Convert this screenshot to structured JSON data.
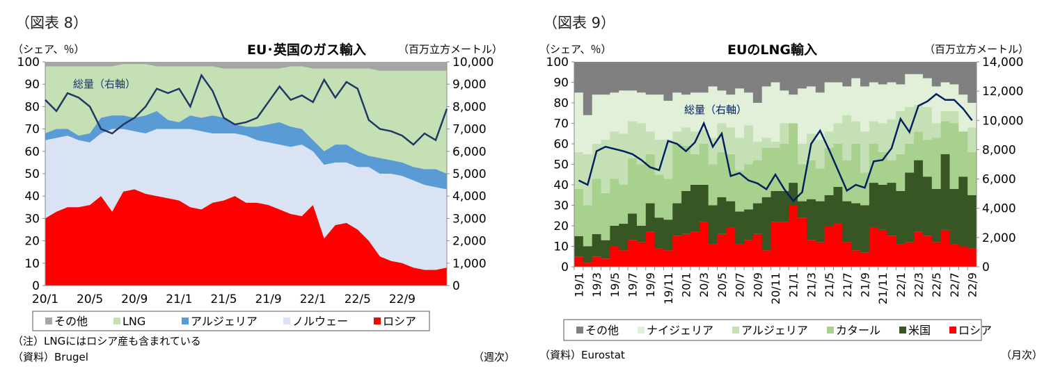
{
  "chart_data": [
    {
      "figure_label": "（図表 8）",
      "type": "area",
      "stacked": true,
      "title": "EU･英国のガス輸入",
      "ylabel_left": "（シェア、％）",
      "ylabel_right": "（百万立方メートル）",
      "ylim_left": [
        0,
        100
      ],
      "ylim_right": [
        0,
        10000
      ],
      "yticks_left": [
        "0",
        "10",
        "20",
        "30",
        "40",
        "50",
        "60",
        "70",
        "80",
        "90",
        "100"
      ],
      "yticks_right": [
        "0",
        "1,000",
        "2,000",
        "3,000",
        "4,000",
        "5,000",
        "6,000",
        "7,000",
        "8,000",
        "9,000",
        "10,000"
      ],
      "xtick_labels": [
        "20/1",
        "20/5",
        "20/9",
        "21/1",
        "21/5",
        "21/9",
        "22/1",
        "22/5",
        "22/9"
      ],
      "x": [
        "20/1",
        "20/2",
        "20/3",
        "20/4",
        "20/5",
        "20/6",
        "20/7",
        "20/8",
        "20/9",
        "20/10",
        "20/11",
        "20/12",
        "21/1",
        "21/2",
        "21/3",
        "21/4",
        "21/5",
        "21/6",
        "21/7",
        "21/8",
        "21/9",
        "21/10",
        "21/11",
        "21/12",
        "22/1",
        "22/2",
        "22/3",
        "22/4",
        "22/5",
        "22/6",
        "22/7",
        "22/8",
        "22/9",
        "22/10",
        "22/11",
        "22/12",
        "23/1"
      ],
      "stack_values_are_cumulative_upper_edges": true,
      "series": [
        {
          "name": "ロシア",
          "color": "#ff0000",
          "values": [
            30,
            33,
            35,
            35,
            36,
            40,
            33,
            42,
            43,
            41,
            40,
            39,
            38,
            35,
            34,
            37,
            38,
            40,
            37,
            37,
            36,
            34,
            32,
            31,
            36,
            21,
            27,
            28,
            25,
            20,
            13,
            11,
            10,
            8,
            7,
            7,
            8
          ]
        },
        {
          "name": "ノルウェー",
          "color": "#dae3f3",
          "values": [
            65,
            66,
            67,
            65,
            64,
            68,
            70,
            70,
            69,
            68,
            70,
            70,
            70,
            70,
            69,
            68,
            68,
            68,
            67,
            65,
            64,
            63,
            62,
            63,
            60,
            54,
            55,
            55,
            53,
            53,
            50,
            50,
            49,
            47,
            45,
            44,
            43
          ]
        },
        {
          "name": "アルジェリア",
          "color": "#5b9bd5",
          "values": [
            68,
            70,
            70,
            67,
            68,
            75,
            76,
            76,
            75,
            76,
            78,
            74,
            73,
            76,
            75,
            76,
            75,
            72,
            71,
            71,
            72,
            73,
            71,
            70,
            65,
            60,
            63,
            63,
            60,
            58,
            57,
            56,
            55,
            53,
            52,
            52,
            50
          ]
        },
        {
          "name": "LNG",
          "color": "#c5e0b4",
          "values": [
            98,
            98,
            98,
            98,
            98,
            98,
            98,
            99,
            99,
            99,
            98,
            98,
            98,
            98,
            98,
            98,
            97,
            97,
            97,
            97,
            97,
            97,
            98,
            98,
            97,
            97,
            97,
            97,
            97,
            97,
            96,
            96,
            96,
            96,
            96,
            96,
            96
          ]
        },
        {
          "name": "その他",
          "color": "#a6a6a6",
          "values": [
            100,
            100,
            100,
            100,
            100,
            100,
            100,
            100,
            100,
            100,
            100,
            100,
            100,
            100,
            100,
            100,
            100,
            100,
            100,
            100,
            100,
            100,
            100,
            100,
            100,
            100,
            100,
            100,
            100,
            100,
            100,
            100,
            100,
            100,
            100,
            100,
            100
          ]
        }
      ],
      "line": {
        "name": "総量（右軸）",
        "color": "#1f3864",
        "values": [
          8300,
          7800,
          8600,
          8400,
          8000,
          7000,
          6800,
          7200,
          7500,
          8000,
          8800,
          8600,
          8800,
          8000,
          9400,
          8700,
          7500,
          7200,
          7300,
          7500,
          8200,
          8900,
          8300,
          8500,
          8200,
          9200,
          8400,
          9100,
          8800,
          7400,
          7000,
          6900,
          6700,
          6300,
          6800,
          6500,
          7900
        ]
      },
      "note": "（注）LNGにはロシア産も含まれている",
      "source": "（資料）Brugel",
      "frequency": "（週次）"
    },
    {
      "figure_label": "（図表 9）",
      "type": "bar",
      "stacked": true,
      "title": "EUのLNG輸入",
      "ylabel_left": "（シェア、％）",
      "ylabel_right": "（百万立方メートル）",
      "ylim_left": [
        0,
        100
      ],
      "ylim_right": [
        0,
        14000
      ],
      "yticks_left": [
        "0",
        "10",
        "20",
        "30",
        "40",
        "50",
        "60",
        "70",
        "80",
        "90",
        "100"
      ],
      "yticks_right": [
        "0",
        "2,000",
        "4,000",
        "6,000",
        "8,000",
        "10,000",
        "12,000",
        "14,000"
      ],
      "x": [
        "19/1",
        "19/2",
        "19/3",
        "19/4",
        "19/5",
        "19/6",
        "19/7",
        "19/8",
        "19/9",
        "19/10",
        "19/11",
        "19/12",
        "20/1",
        "20/2",
        "20/3",
        "20/4",
        "20/5",
        "20/6",
        "20/7",
        "20/8",
        "20/9",
        "20/10",
        "20/11",
        "20/12",
        "21/1",
        "21/2",
        "21/3",
        "21/4",
        "21/5",
        "21/6",
        "21/7",
        "21/8",
        "21/9",
        "21/10",
        "21/11",
        "21/12",
        "22/1",
        "22/2",
        "22/3",
        "22/4",
        "22/5",
        "22/6",
        "22/7",
        "22/8",
        "22/9"
      ],
      "stack_values_are_cumulative_upper_edges": true,
      "series": [
        {
          "name": "ロシア",
          "color": "#ff0000",
          "values": [
            5,
            2,
            5,
            4,
            10,
            8,
            13,
            12,
            17,
            9,
            8,
            15,
            16,
            17,
            22,
            11,
            16,
            19,
            11,
            13,
            16,
            8,
            22,
            22,
            30,
            24,
            13,
            12,
            20,
            21,
            12,
            8,
            7,
            19,
            18,
            15,
            11,
            12,
            17,
            15,
            12,
            18,
            11,
            10,
            9
          ]
        },
        {
          "name": "米国",
          "color": "#375623",
          "values": [
            15,
            10,
            16,
            13,
            20,
            21,
            26,
            20,
            31,
            24,
            23,
            31,
            37,
            40,
            40,
            30,
            34,
            32,
            27,
            28,
            31,
            34,
            37,
            37,
            41,
            32,
            33,
            32,
            35,
            39,
            32,
            31,
            30,
            41,
            40,
            41,
            37,
            46,
            52,
            44,
            38,
            55,
            38,
            44,
            35
          ]
        },
        {
          "name": "カタール",
          "color": "#a9d18e",
          "values": [
            38,
            30,
            43,
            36,
            43,
            40,
            53,
            50,
            55,
            45,
            43,
            60,
            59,
            55,
            60,
            50,
            56,
            55,
            47,
            50,
            52,
            58,
            58,
            60,
            70,
            50,
            52,
            48,
            58,
            60,
            52,
            60,
            46,
            60,
            56,
            52,
            55,
            60,
            66,
            62,
            63,
            71,
            70,
            72,
            56
          ]
        },
        {
          "name": "アルジェリア",
          "color": "#c5e0b4",
          "values": [
            56,
            55,
            60,
            62,
            66,
            65,
            71,
            70,
            66,
            62,
            62,
            66,
            68,
            66,
            67,
            63,
            70,
            68,
            63,
            69,
            61,
            63,
            61,
            70,
            70,
            60,
            65,
            62,
            66,
            70,
            74,
            71,
            66,
            71,
            70,
            72,
            76,
            78,
            79,
            78,
            70,
            76,
            76,
            66,
            68
          ]
        },
        {
          "name": "ナイジェリア",
          "color": "#e2f0d9",
          "values": [
            85,
            74,
            84,
            84,
            85,
            86,
            86,
            85,
            84,
            84,
            81,
            85,
            84,
            85,
            85,
            88,
            86,
            84,
            87,
            85,
            80,
            88,
            90,
            86,
            84,
            87,
            88,
            85,
            90,
            90,
            88,
            92,
            88,
            90,
            89,
            90,
            89,
            94,
            94,
            92,
            88,
            90,
            89,
            84,
            80
          ]
        },
        {
          "name": "その他",
          "color": "#808080",
          "values": [
            100,
            100,
            100,
            100,
            100,
            100,
            100,
            100,
            100,
            100,
            100,
            100,
            100,
            100,
            100,
            100,
            100,
            100,
            100,
            100,
            100,
            100,
            100,
            100,
            100,
            100,
            100,
            100,
            100,
            100,
            100,
            100,
            100,
            100,
            100,
            100,
            100,
            100,
            100,
            100,
            100,
            100,
            100,
            100,
            100
          ]
        }
      ],
      "line": {
        "name": "総量（右軸）",
        "color": "#002060",
        "values": [
          5900,
          5600,
          7900,
          8200,
          8050,
          7900,
          7700,
          7300,
          6800,
          6600,
          8600,
          8400,
          7900,
          8500,
          9800,
          8200,
          9100,
          6200,
          6400,
          5900,
          5700,
          5300,
          6300,
          5300,
          4500,
          5100,
          8400,
          9300,
          8000,
          6600,
          5200,
          5600,
          5400,
          7200,
          7300,
          8100,
          10100,
          9200,
          11000,
          11300,
          11800,
          11400,
          11400,
          10800,
          10000
        ]
      },
      "source": "（資料）Eurostat",
      "frequency": "（月次）"
    }
  ]
}
